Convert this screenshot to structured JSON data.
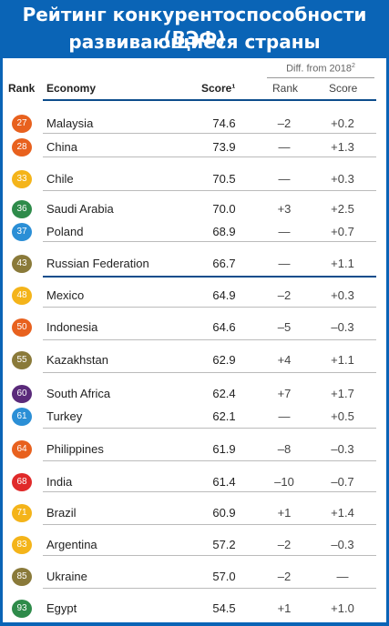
{
  "title": {
    "line1": "Рейтинг конкурентоспособности (ВЭФ)",
    "line2": "развивающиеся страны"
  },
  "table": {
    "diff_header": "Diff. from 2018",
    "diff_header_note": "2",
    "col_rank": "Rank",
    "col_economy": "Economy",
    "col_score": "Score¹",
    "col_diff_rank": "Rank",
    "col_diff_score": "Score",
    "rows": [
      {
        "rank": "27",
        "color": "#e8611e",
        "economy": "Malaysia",
        "score": "74.6",
        "diff_rank": "–2",
        "diff_score": "+0.2"
      },
      {
        "rank": "28",
        "color": "#e8611e",
        "economy": "China",
        "score": "73.9",
        "diff_rank": "—",
        "diff_score": "+1.3"
      },
      {
        "rank": "33",
        "color": "#f4b41a",
        "economy": "Chile",
        "score": "70.5",
        "diff_rank": "—",
        "diff_score": "+0.3"
      },
      {
        "rank": "36",
        "color": "#2e8b4a",
        "economy": "Saudi Arabia",
        "score": "70.0",
        "diff_rank": "+3",
        "diff_score": "+2.5"
      },
      {
        "rank": "37",
        "color": "#2b8fd6",
        "economy": "Poland",
        "score": "68.9",
        "diff_rank": "—",
        "diff_score": "+0.7"
      },
      {
        "rank": "43",
        "color": "#8a7a3a",
        "economy": "Russian Federation",
        "score": "66.7",
        "diff_rank": "—",
        "diff_score": "+1.1"
      },
      {
        "rank": "48",
        "color": "#f4b41a",
        "economy": "Mexico",
        "score": "64.9",
        "diff_rank": "–2",
        "diff_score": "+0.3"
      },
      {
        "rank": "50",
        "color": "#e8611e",
        "economy": "Indonesia",
        "score": "64.6",
        "diff_rank": "–5",
        "diff_score": "–0.3"
      },
      {
        "rank": "55",
        "color": "#8a7a3a",
        "economy": "Kazakhstan",
        "score": "62.9",
        "diff_rank": "+4",
        "diff_score": "+1.1"
      },
      {
        "rank": "60",
        "color": "#5a2a7a",
        "economy": "South Africa",
        "score": "62.4",
        "diff_rank": "+7",
        "diff_score": "+1.7"
      },
      {
        "rank": "61",
        "color": "#2b8fd6",
        "economy": "Turkey",
        "score": "62.1",
        "diff_rank": "—",
        "diff_score": "+0.5"
      },
      {
        "rank": "64",
        "color": "#e8611e",
        "economy": "Philippines",
        "score": "61.9",
        "diff_rank": "–8",
        "diff_score": "–0.3"
      },
      {
        "rank": "68",
        "color": "#e02a2a",
        "economy": "India",
        "score": "61.4",
        "diff_rank": "–10",
        "diff_score": "–0.7"
      },
      {
        "rank": "71",
        "color": "#f4b41a",
        "economy": "Brazil",
        "score": "60.9",
        "diff_rank": "+1",
        "diff_score": "+1.4"
      },
      {
        "rank": "83",
        "color": "#f4b41a",
        "economy": "Argentina",
        "score": "57.2",
        "diff_rank": "–2",
        "diff_score": "–0.3"
      },
      {
        "rank": "85",
        "color": "#8a7a3a",
        "economy": "Ukraine",
        "score": "57.0",
        "diff_rank": "–2",
        "diff_score": "—"
      },
      {
        "rank": "93",
        "color": "#2e8b4a",
        "economy": "Egypt",
        "score": "54.5",
        "diff_rank": "+1",
        "diff_score": "+1.0"
      }
    ]
  }
}
